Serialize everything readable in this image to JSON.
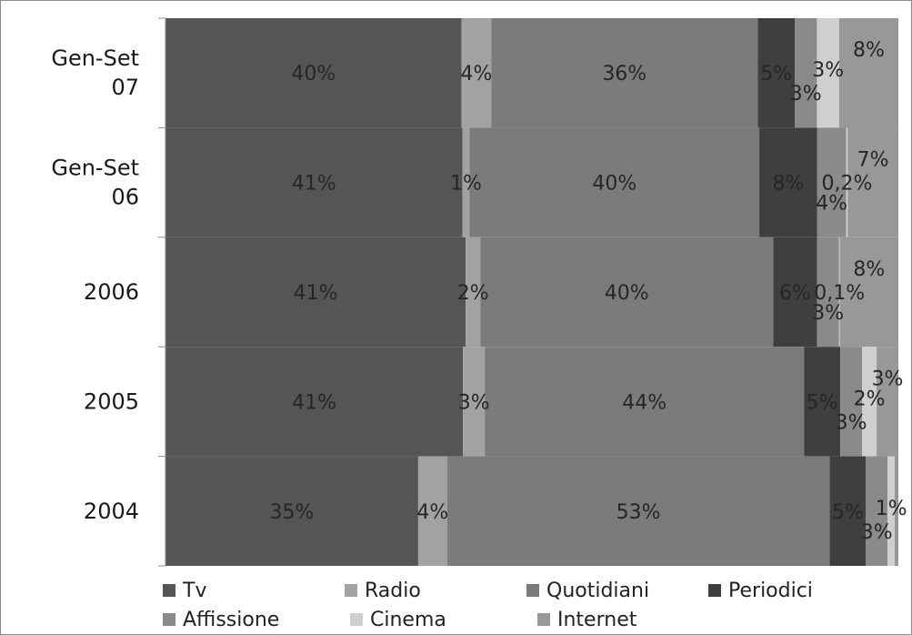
{
  "chart_data": {
    "type": "bar",
    "orientation": "horizontal",
    "stacked": "100%",
    "categories": [
      "Gen-Set 07",
      "Gen-Set 06",
      "2006",
      "2005",
      "2004"
    ],
    "category_lines": [
      [
        "Gen-Set",
        "07"
      ],
      [
        "Gen-Set",
        "06"
      ],
      [
        "2006"
      ],
      [
        "2005"
      ],
      [
        "2004"
      ]
    ],
    "series": [
      {
        "name": "Tv",
        "color": "#555555",
        "values": [
          40,
          41,
          41,
          41,
          35
        ],
        "labels": [
          "40%",
          "41%",
          "41%",
          "41%",
          "35%"
        ]
      },
      {
        "name": "Radio",
        "color": "#a2a2a2",
        "values": [
          4,
          1,
          2,
          3,
          4
        ],
        "labels": [
          "4%",
          "1%",
          "2%",
          "3%",
          "4%"
        ]
      },
      {
        "name": "Quotidiani",
        "color": "#7b7b7b",
        "values": [
          36,
          40,
          40,
          44,
          53
        ],
        "labels": [
          "36%",
          "40%",
          "40%",
          "44%",
          "53%"
        ]
      },
      {
        "name": "Periodici",
        "color": "#3f3f3f",
        "values": [
          5,
          8,
          6,
          5,
          5
        ],
        "labels": [
          "5%",
          "8%",
          "6%",
          "5%",
          "5%"
        ]
      },
      {
        "name": "Affissione",
        "color": "#8a8a8a",
        "values": [
          3,
          4,
          3,
          3,
          3
        ],
        "labels": [
          "3%",
          "4%",
          "3%",
          "3%",
          "3%"
        ]
      },
      {
        "name": "Cinema",
        "color": "#cfcfcf",
        "values": [
          3,
          0.2,
          0.1,
          2,
          1
        ],
        "labels": [
          "3%",
          "0,2%",
          "0,1%",
          "2%",
          "1%"
        ]
      },
      {
        "name": "Internet",
        "color": "#989898",
        "values": [
          8,
          7,
          8,
          3,
          0.5
        ],
        "labels": [
          "8%",
          "7%",
          "8%",
          "3%",
          ""
        ]
      }
    ],
    "xlim": [
      0,
      100
    ],
    "grid": false,
    "legend_position": "bottom"
  }
}
